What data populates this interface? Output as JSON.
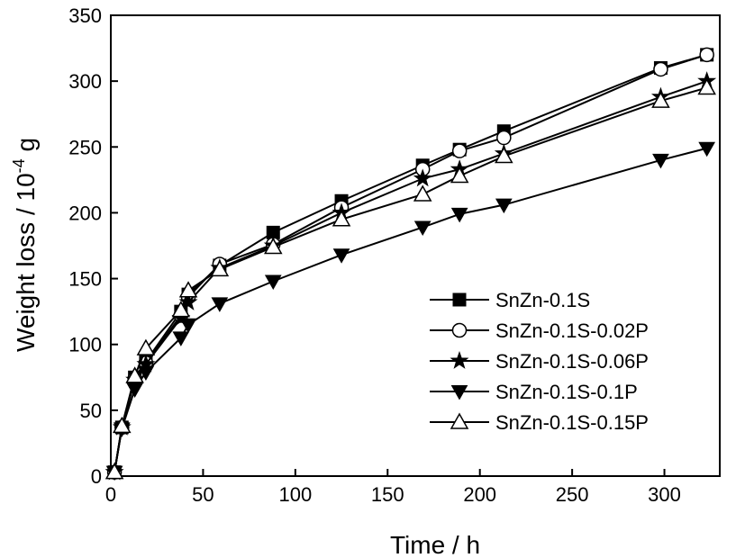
{
  "chart_data": {
    "type": "line",
    "title": "",
    "xlabel": "Time / h",
    "ylabel_main": "Weight loss / 10",
    "ylabel_sup": "-4",
    "ylabel_tail": " g",
    "xlim": [
      0,
      330
    ],
    "ylim": [
      0,
      350
    ],
    "xticks": [
      0,
      50,
      100,
      150,
      200,
      250,
      300
    ],
    "yticks": [
      0,
      50,
      100,
      150,
      200,
      250,
      300,
      350
    ],
    "legend_position": "bottom-right",
    "series": [
      {
        "name": "SnZn-0.1S",
        "marker": "square-filled",
        "x": [
          2,
          6,
          13,
          19,
          38,
          42,
          59,
          88,
          125,
          169,
          189,
          213,
          298,
          323
        ],
        "y": [
          3,
          37,
          75,
          87,
          125,
          138,
          160,
          185,
          209,
          236,
          248,
          262,
          310,
          320
        ]
      },
      {
        "name": "SnZn-0.1S-0.02P",
        "marker": "circle-open",
        "x": [
          2,
          6,
          13,
          19,
          38,
          42,
          59,
          88,
          125,
          169,
          189,
          213,
          298,
          323
        ],
        "y": [
          3,
          37,
          74,
          86,
          122,
          136,
          161,
          176,
          204,
          233,
          247,
          257,
          309,
          320
        ]
      },
      {
        "name": "SnZn-0.1S-0.06P",
        "marker": "star-filled",
        "x": [
          2,
          6,
          13,
          19,
          38,
          42,
          59,
          88,
          125,
          169,
          189,
          213,
          298,
          323
        ],
        "y": [
          3,
          37,
          73,
          85,
          120,
          132,
          158,
          175,
          200,
          226,
          233,
          245,
          288,
          300
        ]
      },
      {
        "name": "SnZn-0.1S-0.1P",
        "marker": "triangle-down-filled",
        "x": [
          2,
          6,
          13,
          19,
          38,
          42,
          59,
          88,
          125,
          169,
          189,
          213,
          298,
          323
        ],
        "y": [
          3,
          36,
          66,
          79,
          105,
          115,
          131,
          148,
          168,
          189,
          199,
          206,
          240,
          249
        ]
      },
      {
        "name": "SnZn-0.1S-0.15P",
        "marker": "triangle-up-open",
        "x": [
          2,
          6,
          13,
          19,
          38,
          42,
          59,
          88,
          125,
          169,
          189,
          213,
          298,
          323
        ],
        "y": [
          3,
          38,
          76,
          97,
          126,
          141,
          157,
          174,
          195,
          214,
          228,
          243,
          285,
          295
        ]
      }
    ]
  }
}
